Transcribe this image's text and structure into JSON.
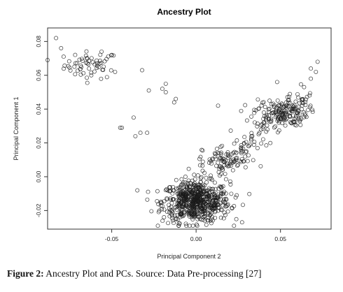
{
  "figure": {
    "caption_label": "Figure 2:",
    "caption_text": " Ancestry Plot and PCs. Source: Data Pre-processing [27]"
  },
  "chart_data": {
    "type": "scatter",
    "title": "Ancestry Plot",
    "xlabel": "Principal Component 2",
    "ylabel": "Principal Component 1",
    "xlim": [
      -0.088,
      0.08
    ],
    "ylim": [
      -0.031,
      0.088
    ],
    "x_ticks": [
      -0.05,
      0.0,
      0.05
    ],
    "x_tick_labels": [
      "-0.05",
      "0.00",
      "0.05"
    ],
    "y_ticks": [
      -0.02,
      0.0,
      0.02,
      0.04,
      0.06,
      0.08
    ],
    "y_tick_labels": [
      "-0.02",
      "0.00",
      "0.02",
      "0.04",
      "0.06",
      "0.08"
    ],
    "marker": "open-circle",
    "marker_color": "#1a1a1a",
    "grid": false,
    "box": true,
    "clusters": [
      {
        "center": [
          -0.062,
          0.066
        ],
        "spread": [
          0.008,
          0.004
        ],
        "count": 60
      },
      {
        "center": [
          0.0,
          -0.015
        ],
        "spread": [
          0.01,
          0.006
        ],
        "count": 620
      },
      {
        "center": [
          0.05,
          0.038
        ],
        "spread": [
          0.008,
          0.004
        ],
        "count": 150
      },
      {
        "center": [
          0.02,
          0.01
        ],
        "spread": [
          0.008,
          0.004
        ],
        "count": 60
      }
    ],
    "diagonal_band": {
      "from": [
        -0.01,
        -0.012
      ],
      "to": [
        0.068,
        0.05
      ],
      "spread": 0.004,
      "count": 140
    },
    "points": [
      [
        -0.083,
        0.082
      ],
      [
        -0.08,
        0.076
      ],
      [
        -0.088,
        0.069
      ],
      [
        -0.056,
        0.074
      ],
      [
        -0.048,
        0.062
      ],
      [
        -0.032,
        0.063
      ],
      [
        -0.018,
        0.055
      ],
      [
        -0.02,
        0.052
      ],
      [
        -0.012,
        0.046
      ],
      [
        -0.013,
        0.044
      ],
      [
        -0.018,
        0.05
      ],
      [
        -0.028,
        0.051
      ],
      [
        0.013,
        0.042
      ],
      [
        -0.045,
        0.029
      ],
      [
        -0.044,
        0.029
      ],
      [
        -0.037,
        0.035
      ],
      [
        -0.036,
        0.024
      ],
      [
        -0.033,
        0.026
      ],
      [
        -0.029,
        0.026
      ],
      [
        0.072,
        0.068
      ],
      [
        0.068,
        0.064
      ],
      [
        0.071,
        0.062
      ],
      [
        0.068,
        0.058
      ],
      [
        0.048,
        0.056
      ],
      [
        0.064,
        0.053
      ]
    ]
  }
}
